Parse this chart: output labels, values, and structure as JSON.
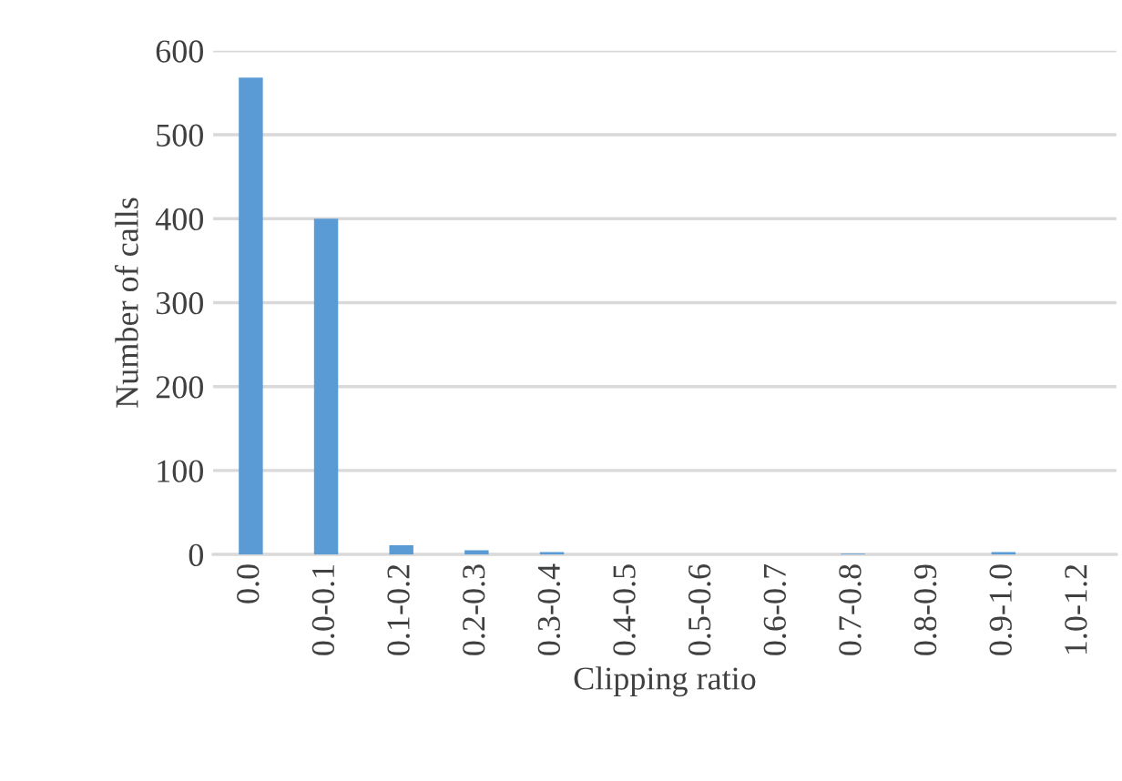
{
  "chart_data": {
    "type": "bar",
    "xlabel": "Clipping ratio",
    "ylabel": "Number of calls",
    "categories": [
      "0.0",
      "0.0-0.1",
      "0.1-0.2",
      "0.2-0.3",
      "0.3-0.4",
      "0.4-0.5",
      "0.5-0.6",
      "0.6-0.7",
      "0.7-0.8",
      "0.8-0.9",
      "0.9-1.0",
      "1.0-1.2"
    ],
    "values": [
      568,
      400,
      11,
      5,
      3,
      0,
      0,
      0,
      1,
      0,
      3,
      0
    ],
    "color": "#5b9bd5",
    "ylim": [
      0,
      600
    ],
    "yticks": [
      0,
      100,
      200,
      300,
      400,
      500,
      600
    ],
    "grid": "y",
    "legend": false
  }
}
